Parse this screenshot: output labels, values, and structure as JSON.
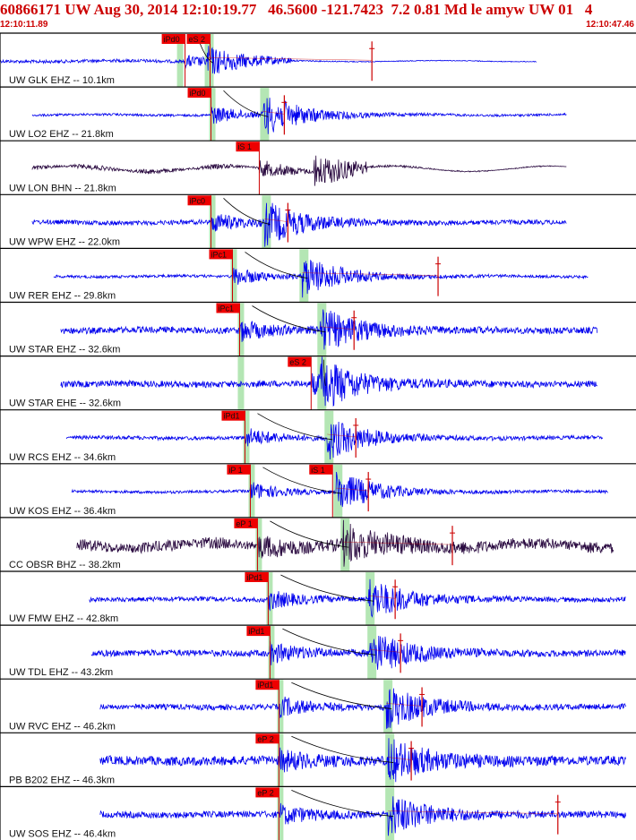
{
  "header": {
    "title": "60866171 UW Aug 30, 2014 12:10:19.77   46.5600 -121.7423  7.2 0.81 Md le amyw UW 01   4",
    "start_time": "12:10:11.89",
    "end_time": "12:10:47.46"
  },
  "colors": {
    "title": "#cc0000",
    "trace_ehz": "#0000ee",
    "trace_bhz": "#2a0a40",
    "pick_box": "#ee0000",
    "pick_line": "#cc0000",
    "window_band": "#b4e6b4",
    "travel_curve": "#000000",
    "separator": "#000000"
  },
  "chart_data": {
    "type": "line",
    "title": "60866171 UW Aug 30, 2014 12:10:19.77   46.5600 -121.7423  7.2 0.81 Md le amyw UW 01   4",
    "xlabel": "",
    "ylabel": "",
    "time_range": [
      "12:10:11.89",
      "12:10:47.46"
    ],
    "time_span_s": 35.57,
    "grid": false,
    "channels": [
      {
        "label": "UW GLK EHZ -- 10.1km",
        "distance_km": 10.1,
        "trace_start_s": 0.0,
        "trace_end_s": 30.0,
        "picks": [
          {
            "label": "iPd0",
            "t": 10.35
          },
          {
            "label": "eS 2",
            "t": 11.75
          }
        ],
        "green_p": 10.0,
        "green_s": 11.6,
        "red_tick_s": 20.8,
        "color_key": "trace_ehz",
        "amp": 0.55,
        "noise": 0.07,
        "flat": true
      },
      {
        "label": "UW LO2 EHZ -- 21.8km",
        "distance_km": 21.8,
        "trace_start_s": 1.8,
        "trace_end_s": 31.7,
        "picks": [
          {
            "label": "iPd0",
            "t": 11.8
          }
        ],
        "green_p": 11.8,
        "green_s": 14.7,
        "red_tick_s": 15.9,
        "color_key": "trace_ehz",
        "amp": 0.9,
        "noise": 0.05
      },
      {
        "label": "UW LON BHN -- 21.8km",
        "distance_km": 21.8,
        "trace_start_s": 1.8,
        "trace_end_s": 31.7,
        "picks": [
          {
            "label": "iS 1",
            "t": 14.5
          }
        ],
        "green_p": null,
        "green_s": null,
        "red_tick_s": null,
        "color_key": "trace_bhz",
        "amp": 0.7,
        "noise": 0.03,
        "flat": true
      },
      {
        "label": "UW WPW EHZ -- 22.0km",
        "distance_km": 22.0,
        "trace_start_s": 1.8,
        "trace_end_s": 31.7,
        "picks": [
          {
            "label": "iPc0",
            "t": 11.8
          }
        ],
        "green_p": 11.8,
        "green_s": 14.8,
        "red_tick_s": 16.1,
        "color_key": "trace_ehz",
        "amp": 0.9,
        "noise": 0.1
      },
      {
        "label": "UW RER EHZ -- 29.8km",
        "distance_km": 29.8,
        "trace_start_s": 3.0,
        "trace_end_s": 32.9,
        "picks": [
          {
            "label": "iPc1",
            "t": 13.0
          }
        ],
        "green_p": 13.0,
        "green_s": 16.9,
        "red_tick_s": 24.5,
        "color_key": "trace_ehz",
        "amp": 0.9,
        "noise": 0.06
      },
      {
        "label": "UW STAR EHZ -- 32.6km",
        "distance_km": 32.6,
        "trace_start_s": 3.4,
        "trace_end_s": 33.4,
        "picks": [
          {
            "label": "iPc1",
            "t": 13.4
          }
        ],
        "green_p": 13.4,
        "green_s": 17.9,
        "red_tick_s": 19.8,
        "color_key": "trace_ehz",
        "amp": 0.9,
        "noise": 0.14
      },
      {
        "label": "UW STAR EHE -- 32.6km",
        "distance_km": 32.6,
        "trace_start_s": 3.4,
        "trace_end_s": 33.4,
        "picks": [
          {
            "label": "eS 2",
            "t": 17.4
          }
        ],
        "green_p": 13.4,
        "green_s": 17.9,
        "red_tick_s": null,
        "color_key": "trace_ehz",
        "amp": 0.9,
        "noise": 0.14
      },
      {
        "label": "UW RCS EHZ -- 34.6km",
        "distance_km": 34.6,
        "trace_start_s": 3.7,
        "trace_end_s": 33.7,
        "picks": [
          {
            "label": "iPd1",
            "t": 13.7
          }
        ],
        "green_p": 13.7,
        "green_s": 18.3,
        "red_tick_s": 19.9,
        "color_key": "trace_ehz",
        "amp": 0.9,
        "noise": 0.08
      },
      {
        "label": "UW KOS EHZ -- 36.4km",
        "distance_km": 36.4,
        "trace_start_s": 4.0,
        "trace_end_s": 34.0,
        "picks": [
          {
            "label": "iP 1",
            "t": 14.0
          },
          {
            "label": "iS 1",
            "t": 18.6
          }
        ],
        "green_p": 14.0,
        "green_s": 18.8,
        "red_tick_s": 20.6,
        "color_key": "trace_ehz",
        "amp": 0.9,
        "noise": 0.06
      },
      {
        "label": "CC OBSR BHZ -- 38.2km",
        "distance_km": 38.2,
        "trace_start_s": 4.3,
        "trace_end_s": 34.3,
        "picks": [
          {
            "label": "eP 1",
            "t": 14.4
          }
        ],
        "green_p": 14.4,
        "green_s": 19.2,
        "red_tick_s": 25.3,
        "color_key": "trace_bhz",
        "amp": 0.8,
        "noise": 0.18
      },
      {
        "label": "UW FMW EHZ -- 42.8km",
        "distance_km": 42.8,
        "trace_start_s": 5.0,
        "trace_end_s": 35.0,
        "picks": [
          {
            "label": "iPd1",
            "t": 15.0
          }
        ],
        "green_p": 15.0,
        "green_s": 20.6,
        "red_tick_s": 22.1,
        "color_key": "trace_ehz",
        "amp": 0.9,
        "noise": 0.1
      },
      {
        "label": "UW TDL EHZ -- 43.2km",
        "distance_km": 43.2,
        "trace_start_s": 5.1,
        "trace_end_s": 35.0,
        "picks": [
          {
            "label": "iPd1",
            "t": 15.1
          }
        ],
        "green_p": 15.1,
        "green_s": 20.7,
        "red_tick_s": 22.4,
        "color_key": "trace_ehz",
        "amp": 0.9,
        "noise": 0.14
      },
      {
        "label": "UW RVC EHZ -- 46.2km",
        "distance_km": 46.2,
        "trace_start_s": 5.6,
        "trace_end_s": 35.0,
        "picks": [
          {
            "label": "iPd1",
            "t": 15.6
          }
        ],
        "green_p": 15.6,
        "green_s": 21.6,
        "red_tick_s": 23.6,
        "color_key": "trace_ehz",
        "amp": 0.9,
        "noise": 0.12
      },
      {
        "label": "PB B202 EHZ -- 46.3km",
        "distance_km": 46.3,
        "trace_start_s": 5.6,
        "trace_end_s": 35.0,
        "picks": [
          {
            "label": "eP 2",
            "t": 15.6
          }
        ],
        "green_p": 15.6,
        "green_s": 21.7,
        "red_tick_s": 23.0,
        "color_key": "trace_ehz",
        "amp": 0.9,
        "noise": 0.2
      },
      {
        "label": "UW SOS EHZ -- 46.4km",
        "distance_km": 46.4,
        "trace_start_s": 5.6,
        "trace_end_s": 35.0,
        "picks": [
          {
            "label": "eP 2",
            "t": 15.6
          }
        ],
        "green_p": 15.6,
        "green_s": 21.7,
        "red_tick_s": 31.2,
        "color_key": "trace_ehz",
        "amp": 0.9,
        "noise": 0.14
      }
    ]
  }
}
